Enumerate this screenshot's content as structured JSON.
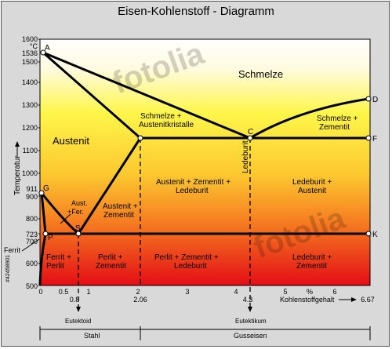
{
  "title": "Eisen-Kohlenstoff - Diagramm",
  "y_axis": {
    "label": "Temperatur",
    "unit": "°C",
    "ticks": [
      "1600",
      "1536",
      "1500",
      "1400",
      "1300",
      "1200",
      "1100",
      "1000",
      "911",
      "900",
      "800",
      "723",
      "700",
      "600",
      "500"
    ]
  },
  "x_axis": {
    "label": "Kohlenstoffgehalt",
    "unit": "%",
    "ticks": [
      "0",
      "0.5",
      "1",
      "2",
      "3",
      "4",
      "5",
      "6"
    ],
    "special_ticks": [
      "0.8",
      "2.06",
      "4.3",
      "6.67"
    ]
  },
  "points": {
    "A": "A",
    "G": "G",
    "P": "P",
    "S": "S",
    "C": "C",
    "D": "D",
    "F": "F",
    "K": "K"
  },
  "regions": {
    "schmelze": "Schmelze",
    "austenit": "Austenit",
    "schmelze_austenit_1": "Schmelze +",
    "schmelze_austenit_2": "Austenitkristalle",
    "schmelze_zementit_1": "Schmelze +",
    "schmelze_zementit_2": "Zementit",
    "aust_fer_1": "Aust.",
    "aust_fer_2": "+Fer.",
    "austenit_zementit_1": "Austenit +",
    "austenit_zementit_2": "Zementit",
    "aust_zem_led_1": "Austenit + Zementit +",
    "aust_zem_led_2": "Ledeburit",
    "ledeburit_vertical": "Ledeburit",
    "ledeburit_austenit_1": "Ledeburit +",
    "ledeburit_austenit_2": "Austenit",
    "ferrit": "Ferrit",
    "ferrit_perlit_1": "Ferrit +",
    "ferrit_perlit_2": "Perlit",
    "perlit_zementit_1": "Perlit +",
    "perlit_zementit_2": "Zementit",
    "perlit_zem_led_1": "Perlit + Zementit +",
    "perlit_zem_led_2": "Ledeburit",
    "ledeburit_zementit_1": "Ledeburit +",
    "ledeburit_zementit_2": "Zementit"
  },
  "bottom": {
    "eutektoid": "Eutektoid",
    "eutektikum": "Eutektikum",
    "stahl": "Stahl",
    "gusseisen": "Gusseisen"
  },
  "watermark": "fotolia",
  "stock_id": "#42458901",
  "colors": {
    "melt_yellow": "#fff86a",
    "mid_orange": "#fbb330",
    "low_red": "#e8141c",
    "line": "#000000",
    "frame": "#d9d9d9"
  }
}
